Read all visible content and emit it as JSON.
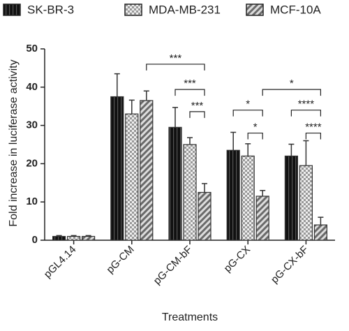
{
  "chart_data": {
    "type": "bar",
    "y_label": "Fold increase in luciferase activity",
    "x_label": "Treatments",
    "categories": [
      "pGL4.14",
      "pG-CM",
      "pG-CM-bF",
      "pG-CX",
      "pG-CX-bF"
    ],
    "series": [
      {
        "name": "SK-BR-3",
        "color": "#1a1a1a",
        "values": [
          1,
          37.5,
          29.5,
          23.5,
          22
        ],
        "errors": [
          0.2,
          6,
          5.2,
          4.7,
          3.1
        ]
      },
      {
        "name": "MDA-MB-231",
        "color": "#c8c8c8",
        "values": [
          1,
          33,
          25,
          22,
          19.5
        ],
        "errors": [
          0.2,
          3.6,
          1.8,
          3.2,
          6.5
        ]
      },
      {
        "name": "MCF-10A",
        "color": "#7a7a7a",
        "values": [
          1,
          36.5,
          12.5,
          11.5,
          4
        ],
        "errors": [
          0.2,
          2.5,
          2.3,
          1.5,
          2
        ]
      }
    ],
    "ylim": [
      0,
      50
    ],
    "yticks": [
      0,
      10,
      20,
      30,
      40,
      50
    ],
    "annotations": [
      {
        "label": "***",
        "from": {
          "series": 2,
          "category": 1
        },
        "to": {
          "series": 2,
          "category": 2
        },
        "y": 46
      },
      {
        "label": "***",
        "from": {
          "series": 0,
          "category": 2
        },
        "to": {
          "series": 2,
          "category": 2
        },
        "y": 39.4
      },
      {
        "label": "***",
        "from": {
          "series": 1,
          "category": 2
        },
        "to": {
          "series": 2,
          "category": 2
        },
        "y": 33.6
      },
      {
        "label": "*",
        "from": {
          "series": 0,
          "category": 3
        },
        "to": {
          "series": 2,
          "category": 3
        },
        "y": 34
      },
      {
        "label": "*",
        "from": {
          "series": 1,
          "category": 3
        },
        "to": {
          "series": 2,
          "category": 3
        },
        "y": 28
      },
      {
        "label": "*",
        "from": {
          "series": 2,
          "category": 3
        },
        "to": {
          "series": 2,
          "category": 4
        },
        "y": 39.4
      },
      {
        "label": "****",
        "from": {
          "series": 0,
          "category": 4
        },
        "to": {
          "series": 2,
          "category": 4
        },
        "y": 34
      },
      {
        "label": "****",
        "from": {
          "series": 1,
          "category": 4
        },
        "to": {
          "series": 2,
          "category": 4
        },
        "y": 28
      }
    ]
  }
}
